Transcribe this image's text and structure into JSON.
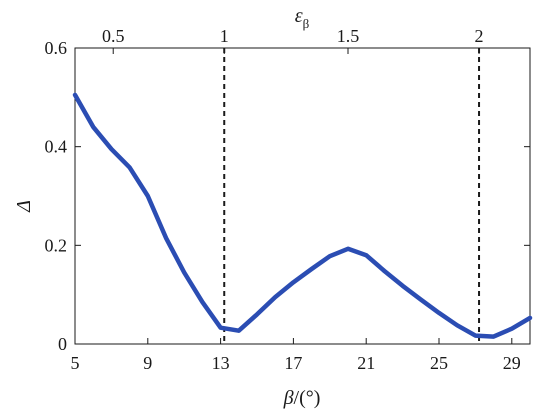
{
  "chart_data": {
    "type": "line",
    "xlabel_symbol": "β",
    "xlabel_unit": "/(°)",
    "ylabel": "Δ",
    "top_xlabel_symbol": "ε",
    "top_xlabel_sub": "β",
    "xlim": [
      5,
      30
    ],
    "ylim": [
      0,
      0.6
    ],
    "xticks": [
      5,
      9,
      13,
      17,
      21,
      25,
      29
    ],
    "xtick_labels": [
      "5",
      "9",
      "13",
      "17",
      "21",
      "25",
      "29"
    ],
    "yticks": [
      0,
      0.2,
      0.4,
      0.6
    ],
    "ytick_labels": [
      "0",
      "0.2",
      "0.4",
      "0.6"
    ],
    "top_ticks": [
      {
        "beta": 7.1,
        "label": "0.5"
      },
      {
        "beta": 13.2,
        "label": "1"
      },
      {
        "beta": 20.0,
        "label": "1.5"
      },
      {
        "beta": 27.2,
        "label": "2"
      }
    ],
    "vlines": [
      13.2,
      27.2
    ],
    "series": [
      {
        "color": "#2b4db3",
        "x": [
          5,
          6,
          7,
          8,
          9,
          10,
          11,
          12,
          13,
          14,
          15,
          16,
          17,
          18,
          19,
          20,
          21,
          22,
          23,
          24,
          25,
          26,
          27,
          28,
          29,
          30
        ],
        "y": [
          0.505,
          0.44,
          0.395,
          0.358,
          0.3,
          0.215,
          0.145,
          0.085,
          0.033,
          0.027,
          0.06,
          0.095,
          0.125,
          0.152,
          0.178,
          0.193,
          0.18,
          0.148,
          0.118,
          0.09,
          0.063,
          0.038,
          0.017,
          0.015,
          0.031,
          0.053
        ]
      }
    ]
  }
}
